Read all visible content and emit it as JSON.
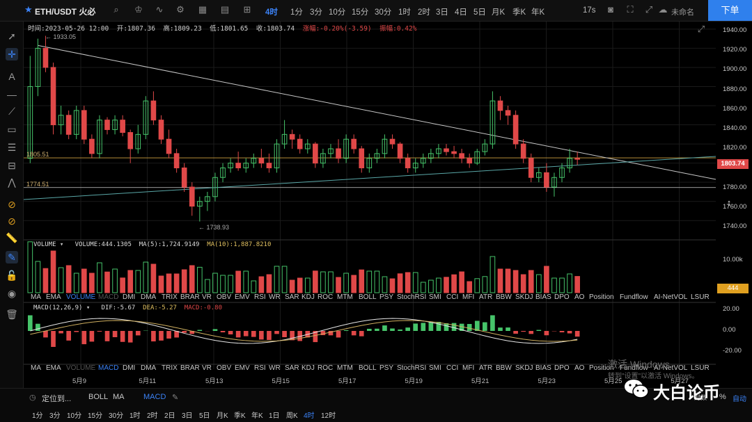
{
  "header": {
    "symbol": "ETH/USDT 火必",
    "intervals": [
      "4时",
      "1分",
      "3分",
      "10分",
      "15分",
      "30分",
      "1时",
      "2时",
      "3日",
      "4日",
      "5日",
      "月K",
      "季K",
      "年K"
    ],
    "active_interval": "4时",
    "countdown": "17s",
    "unnamed": "未命名",
    "order_label": "下单",
    "colors": {
      "accent": "#3b82f6",
      "up": "#46c46a",
      "down": "#e04848"
    }
  },
  "toolbar": {
    "icons": [
      "cursor-icon",
      "crosshair-icon",
      "text-icon",
      "horizontal-line-icon",
      "trend-line-icon",
      "rectangle-icon",
      "fib-icon",
      "measure-icon",
      "pattern-icon",
      "magnet-icon",
      "magnet-alt-icon",
      "ruler-icon",
      "pen-icon",
      "lock-icon",
      "eye-icon",
      "trash-icon"
    ]
  },
  "ohlc": {
    "time": "时间:2023-05-26 12:00",
    "open": "开:1807.36",
    "high": "高:1809.23",
    "low": "低:1801.65",
    "close": "收:1803.74",
    "change": "涨幅:-0.20%(-3.59)",
    "amplitude": "振幅:0.42%"
  },
  "price_axis": {
    "ticks": [
      "1940.00",
      "1920.00",
      "1900.00",
      "1880.00",
      "1860.00",
      "1840.00",
      "1820.00",
      "1800.00",
      "1780.00",
      "1760.00",
      "1740.00"
    ],
    "current": "1803.74",
    "volume_ticks": [
      "10.00k"
    ],
    "volume_current": "444",
    "macd_ticks": [
      "20.00",
      "0.00",
      "-20.00"
    ]
  },
  "annotations": {
    "high": "1933.05",
    "low": "1738.93",
    "line1": "1805.51",
    "line2": "1774.51"
  },
  "volume_label": {
    "name": "VOLUME",
    "value": "VOLUME:444.1305",
    "ma5": "MA(5):1,724.9149",
    "ma10": "MA(10):1,887.8210"
  },
  "macd_label": {
    "name": "MACD(12,26,9)",
    "dif": "DIF:-5.67",
    "dea": "DEA:-5.27",
    "macd": "MACD:-0.80"
  },
  "indicator_tabs_1": [
    "MA",
    "EMA",
    "VOLUME",
    "MACD",
    "DMI",
    "DMA",
    "TRIX",
    "BRAR",
    "VR",
    "OBV",
    "EMV",
    "RSI",
    "WR",
    "SAR",
    "KDJ",
    "ROC",
    "MTM",
    "BOLL",
    "PSY",
    "StochRSI",
    "SMI",
    "CCI",
    "MFI",
    "ATR",
    "BBW",
    "SKDJ",
    "BIAS",
    "DPO",
    "AO",
    "Position",
    "Fundflow",
    "AI-NetVOL",
    "LSUR"
  ],
  "indicator_tabs_2": [
    "MA",
    "EMA",
    "VOLUME",
    "MACD",
    "DMI",
    "DMA",
    "TRIX",
    "BRAR",
    "VR",
    "OBV",
    "EMV",
    "RSI",
    "WR",
    "SAR",
    "KDJ",
    "ROC",
    "MTM",
    "BOLL",
    "PSY",
    "StochRSI",
    "SMI",
    "CCI",
    "MFI",
    "ATR",
    "BBW",
    "SKDJ",
    "BIAS",
    "DPO",
    "AO",
    "Position",
    "Fundflow",
    "AI-NetVOL",
    "LSUR"
  ],
  "dates": [
    "5月9",
    "5月11",
    "5月13",
    "5月15",
    "5月17",
    "5月19",
    "5月21",
    "5月23",
    "5月25",
    "5月27"
  ],
  "bottom_bar": {
    "locate": "定位到...",
    "indicators": [
      "BOLL",
      "MA",
      "MACD"
    ],
    "intervals": [
      "1分",
      "3分",
      "10分",
      "15分",
      "30分",
      "1时",
      "2时",
      "2日",
      "3日",
      "5日",
      "月K",
      "季K",
      "年K",
      "1日",
      "周K",
      "4时",
      "12时"
    ],
    "active": "4时",
    "auto": "自动",
    "log": "对数",
    "percent": "%"
  },
  "watermark": {
    "line1": "激活 Windows",
    "line2": "转到\"设置\"以激活 Windows。",
    "brand": "大白论币"
  },
  "chart_data": {
    "type": "candlestick",
    "candles": [
      [
        1805,
        1912,
        1800,
        1880
      ],
      [
        1880,
        1930,
        1870,
        1920
      ],
      [
        1920,
        1933,
        1895,
        1900
      ],
      [
        1900,
        1905,
        1830,
        1840
      ],
      [
        1840,
        1860,
        1830,
        1850
      ],
      [
        1850,
        1855,
        1825,
        1830
      ],
      [
        1830,
        1860,
        1825,
        1855
      ],
      [
        1855,
        1860,
        1820,
        1825
      ],
      [
        1825,
        1830,
        1805,
        1810
      ],
      [
        1810,
        1850,
        1805,
        1845
      ],
      [
        1845,
        1848,
        1830,
        1835
      ],
      [
        1835,
        1850,
        1830,
        1845
      ],
      [
        1845,
        1850,
        1828,
        1832
      ],
      [
        1832,
        1835,
        1800,
        1815
      ],
      [
        1815,
        1840,
        1810,
        1830
      ],
      [
        1830,
        1870,
        1825,
        1865
      ],
      [
        1865,
        1875,
        1840,
        1845
      ],
      [
        1845,
        1850,
        1820,
        1825
      ],
      [
        1825,
        1835,
        1805,
        1810
      ],
      [
        1810,
        1815,
        1790,
        1795
      ],
      [
        1795,
        1800,
        1770,
        1775
      ],
      [
        1775,
        1780,
        1745,
        1755
      ],
      [
        1755,
        1765,
        1739,
        1760
      ],
      [
        1760,
        1770,
        1750,
        1765
      ],
      [
        1765,
        1790,
        1760,
        1785
      ],
      [
        1785,
        1800,
        1780,
        1795
      ],
      [
        1795,
        1805,
        1790,
        1800
      ],
      [
        1800,
        1812,
        1792,
        1795
      ],
      [
        1795,
        1805,
        1790,
        1800
      ],
      [
        1800,
        1810,
        1795,
        1805
      ],
      [
        1805,
        1815,
        1795,
        1800
      ],
      [
        1800,
        1810,
        1790,
        1795
      ],
      [
        1795,
        1825,
        1790,
        1820
      ],
      [
        1820,
        1845,
        1815,
        1830
      ],
      [
        1830,
        1835,
        1815,
        1825
      ],
      [
        1825,
        1830,
        1810,
        1815
      ],
      [
        1815,
        1825,
        1810,
        1820
      ],
      [
        1820,
        1822,
        1795,
        1800
      ],
      [
        1800,
        1815,
        1795,
        1810
      ],
      [
        1810,
        1820,
        1805,
        1815
      ],
      [
        1815,
        1825,
        1800,
        1805
      ],
      [
        1805,
        1830,
        1800,
        1825
      ],
      [
        1825,
        1830,
        1810,
        1815
      ],
      [
        1815,
        1818,
        1790,
        1795
      ],
      [
        1795,
        1810,
        1790,
        1805
      ],
      [
        1805,
        1815,
        1800,
        1810
      ],
      [
        1810,
        1830,
        1805,
        1825
      ],
      [
        1825,
        1830,
        1815,
        1820
      ],
      [
        1820,
        1822,
        1800,
        1805
      ],
      [
        1805,
        1810,
        1790,
        1795
      ],
      [
        1795,
        1805,
        1790,
        1800
      ],
      [
        1800,
        1810,
        1795,
        1805
      ],
      [
        1805,
        1815,
        1800,
        1810
      ],
      [
        1810,
        1820,
        1805,
        1815
      ],
      [
        1815,
        1820,
        1808,
        1812
      ],
      [
        1812,
        1818,
        1805,
        1810
      ],
      [
        1810,
        1815,
        1800,
        1805
      ],
      [
        1805,
        1810,
        1795,
        1800
      ],
      [
        1800,
        1815,
        1798,
        1812
      ],
      [
        1812,
        1825,
        1808,
        1820
      ],
      [
        1820,
        1875,
        1815,
        1865
      ],
      [
        1865,
        1870,
        1845,
        1855
      ],
      [
        1855,
        1860,
        1840,
        1850
      ],
      [
        1850,
        1855,
        1815,
        1820
      ],
      [
        1820,
        1825,
        1800,
        1805
      ],
      [
        1805,
        1810,
        1780,
        1785
      ],
      [
        1785,
        1795,
        1780,
        1790
      ],
      [
        1790,
        1800,
        1770,
        1775
      ],
      [
        1775,
        1790,
        1765,
        1785
      ],
      [
        1785,
        1800,
        1780,
        1795
      ],
      [
        1795,
        1815,
        1790,
        1805
      ],
      [
        1805,
        1812,
        1798,
        1804
      ]
    ]
  }
}
